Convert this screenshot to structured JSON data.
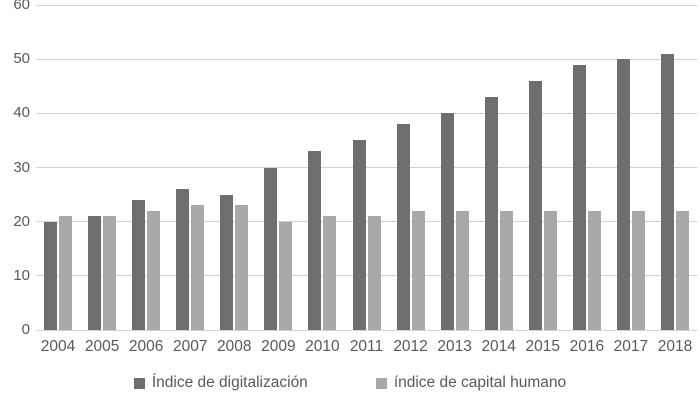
{
  "chart_data": {
    "type": "bar",
    "title": "",
    "xlabel": "",
    "ylabel": "",
    "categories": [
      "2004",
      "2005",
      "2006",
      "2007",
      "2008",
      "2009",
      "2010",
      "2011",
      "2012",
      "2013",
      "2014",
      "2015",
      "2016",
      "2017",
      "2018"
    ],
    "series": [
      {
        "name": "Índice de digitalización",
        "color": "#6e6e6e",
        "values": [
          20,
          21,
          24,
          26,
          25,
          30,
          33,
          35,
          38,
          40,
          43,
          46,
          49,
          50,
          51
        ]
      },
      {
        "name": "índice de capital humano",
        "color": "#a9a9a9",
        "values": [
          21,
          21,
          22,
          23,
          23,
          20,
          21,
          21,
          22,
          22,
          22,
          22,
          22,
          22,
          22
        ]
      }
    ],
    "ylim": [
      0,
      60
    ],
    "yticks": [
      0,
      10,
      20,
      30,
      40,
      50,
      60
    ],
    "grid": true,
    "legend_position": "bottom"
  },
  "style": {
    "gridline_color": "#d2d2d2",
    "tick_label_color": "#595959",
    "background": "#ffffff"
  }
}
